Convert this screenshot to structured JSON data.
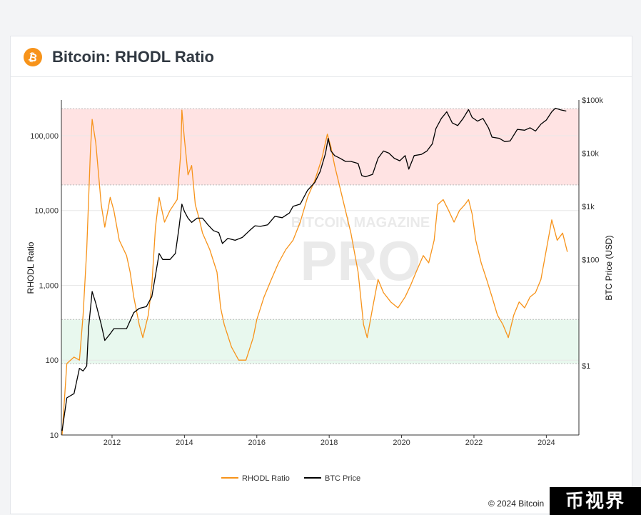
{
  "header": {
    "title": "Bitcoin: RHODL Ratio",
    "logo_icon": "bitcoin-logo-icon"
  },
  "watermark": {
    "line1": "BITCOIN MAGAZINE",
    "line2": "PRO"
  },
  "copyright": "© 2024 Bitcoin",
  "corner_badge": "币视界",
  "colors": {
    "rhodl": "#f7931a",
    "price": "#000000",
    "red_zone": "#ffe3e3",
    "green_zone": "#e8f8ee"
  },
  "chart_data": {
    "type": "line",
    "title": "Bitcoin: RHODL Ratio",
    "xlabel": "",
    "ylabel": "RHODL Ratio",
    "y2label": "BTC Price (USD)",
    "y_scale": "log",
    "y2_scale": "log",
    "ylim": [
      10,
      300000
    ],
    "y2lim": [
      0.05,
      100000
    ],
    "xlim": [
      2010.6,
      2024.9
    ],
    "x_ticks": [
      "2012",
      "2014",
      "2016",
      "2018",
      "2020",
      "2022",
      "2024"
    ],
    "y_ticks": [
      "10",
      "100",
      "1,000",
      "10,000",
      "100,000"
    ],
    "y2_ticks": [
      "$1",
      "$100",
      "$1k",
      "$10k",
      "$100k"
    ],
    "y2_tick_values": [
      1,
      100,
      1000,
      10000,
      100000
    ],
    "bands": [
      {
        "name": "sell-zone",
        "axis": "y",
        "from": 22000,
        "to": 230000
      },
      {
        "name": "buy-zone",
        "axis": "y",
        "from": 90,
        "to": 350
      }
    ],
    "grid": true,
    "legend_position": "bottom",
    "series": [
      {
        "name": "RHODL Ratio",
        "axis": "y",
        "points": [
          [
            2010.62,
            10
          ],
          [
            2010.75,
            90
          ],
          [
            2010.95,
            110
          ],
          [
            2011.1,
            100
          ],
          [
            2011.2,
            400
          ],
          [
            2011.3,
            3000
          ],
          [
            2011.4,
            60000
          ],
          [
            2011.45,
            165000
          ],
          [
            2011.55,
            80000
          ],
          [
            2011.7,
            12000
          ],
          [
            2011.8,
            6000
          ],
          [
            2011.95,
            15000
          ],
          [
            2012.05,
            10000
          ],
          [
            2012.2,
            4000
          ],
          [
            2012.4,
            2500
          ],
          [
            2012.5,
            1500
          ],
          [
            2012.6,
            700
          ],
          [
            2012.75,
            300
          ],
          [
            2012.85,
            200
          ],
          [
            2013.0,
            400
          ],
          [
            2013.1,
            1000
          ],
          [
            2013.2,
            6000
          ],
          [
            2013.3,
            15000
          ],
          [
            2013.45,
            7000
          ],
          [
            2013.6,
            10000
          ],
          [
            2013.8,
            14000
          ],
          [
            2013.9,
            60000
          ],
          [
            2013.93,
            220000
          ],
          [
            2014.0,
            90000
          ],
          [
            2014.1,
            30000
          ],
          [
            2014.2,
            40000
          ],
          [
            2014.3,
            12000
          ],
          [
            2014.4,
            8000
          ],
          [
            2014.5,
            5000
          ],
          [
            2014.7,
            3000
          ],
          [
            2014.9,
            1500
          ],
          [
            2015.0,
            500
          ],
          [
            2015.1,
            300
          ],
          [
            2015.3,
            150
          ],
          [
            2015.5,
            100
          ],
          [
            2015.7,
            100
          ],
          [
            2015.9,
            200
          ],
          [
            2016.0,
            350
          ],
          [
            2016.2,
            700
          ],
          [
            2016.4,
            1200
          ],
          [
            2016.6,
            2000
          ],
          [
            2016.8,
            3000
          ],
          [
            2017.0,
            4000
          ],
          [
            2017.2,
            7000
          ],
          [
            2017.4,
            15000
          ],
          [
            2017.6,
            25000
          ],
          [
            2017.8,
            50000
          ],
          [
            2017.95,
            105000
          ],
          [
            2018.05,
            70000
          ],
          [
            2018.15,
            40000
          ],
          [
            2018.3,
            20000
          ],
          [
            2018.45,
            10000
          ],
          [
            2018.6,
            5000
          ],
          [
            2018.8,
            1500
          ],
          [
            2018.95,
            300
          ],
          [
            2019.05,
            200
          ],
          [
            2019.2,
            500
          ],
          [
            2019.35,
            1200
          ],
          [
            2019.5,
            800
          ],
          [
            2019.7,
            600
          ],
          [
            2019.9,
            500
          ],
          [
            2020.1,
            700
          ],
          [
            2020.25,
            1000
          ],
          [
            2020.4,
            1500
          ],
          [
            2020.6,
            2500
          ],
          [
            2020.75,
            2000
          ],
          [
            2020.9,
            4000
          ],
          [
            2021.0,
            12000
          ],
          [
            2021.15,
            14000
          ],
          [
            2021.3,
            10000
          ],
          [
            2021.45,
            7000
          ],
          [
            2021.6,
            10000
          ],
          [
            2021.75,
            12000
          ],
          [
            2021.85,
            14000
          ],
          [
            2021.95,
            9000
          ],
          [
            2022.05,
            4000
          ],
          [
            2022.2,
            2000
          ],
          [
            2022.35,
            1200
          ],
          [
            2022.5,
            700
          ],
          [
            2022.65,
            400
          ],
          [
            2022.8,
            300
          ],
          [
            2022.95,
            200
          ],
          [
            2023.1,
            400
          ],
          [
            2023.25,
            600
          ],
          [
            2023.4,
            500
          ],
          [
            2023.55,
            700
          ],
          [
            2023.7,
            800
          ],
          [
            2023.85,
            1200
          ],
          [
            2024.0,
            3000
          ],
          [
            2024.15,
            7500
          ],
          [
            2024.3,
            4000
          ],
          [
            2024.45,
            5000
          ],
          [
            2024.58,
            2800
          ]
        ]
      },
      {
        "name": "BTC Price",
        "axis": "y2",
        "points": [
          [
            2010.62,
            0.06
          ],
          [
            2010.75,
            0.25
          ],
          [
            2010.95,
            0.3
          ],
          [
            2011.1,
            0.9
          ],
          [
            2011.2,
            0.8
          ],
          [
            2011.3,
            1.0
          ],
          [
            2011.35,
            5
          ],
          [
            2011.45,
            25
          ],
          [
            2011.55,
            15
          ],
          [
            2011.7,
            6
          ],
          [
            2011.8,
            3
          ],
          [
            2011.95,
            4
          ],
          [
            2012.05,
            5
          ],
          [
            2012.2,
            5
          ],
          [
            2012.4,
            5
          ],
          [
            2012.6,
            10
          ],
          [
            2012.75,
            12
          ],
          [
            2012.95,
            13
          ],
          [
            2013.1,
            20
          ],
          [
            2013.2,
            50
          ],
          [
            2013.3,
            130
          ],
          [
            2013.4,
            100
          ],
          [
            2013.5,
            100
          ],
          [
            2013.6,
            100
          ],
          [
            2013.75,
            130
          ],
          [
            2013.85,
            400
          ],
          [
            2013.93,
            1100
          ],
          [
            2014.0,
            800
          ],
          [
            2014.1,
            600
          ],
          [
            2014.2,
            500
          ],
          [
            2014.35,
            600
          ],
          [
            2014.5,
            600
          ],
          [
            2014.65,
            450
          ],
          [
            2014.8,
            350
          ],
          [
            2014.95,
            320
          ],
          [
            2015.05,
            200
          ],
          [
            2015.2,
            250
          ],
          [
            2015.4,
            230
          ],
          [
            2015.6,
            260
          ],
          [
            2015.8,
            350
          ],
          [
            2015.95,
            430
          ],
          [
            2016.1,
            420
          ],
          [
            2016.3,
            450
          ],
          [
            2016.5,
            650
          ],
          [
            2016.7,
            610
          ],
          [
            2016.9,
            750
          ],
          [
            2017.0,
            1000
          ],
          [
            2017.2,
            1100
          ],
          [
            2017.4,
            2000
          ],
          [
            2017.6,
            2800
          ],
          [
            2017.75,
            4500
          ],
          [
            2017.9,
            10000
          ],
          [
            2017.97,
            19000
          ],
          [
            2018.05,
            11000
          ],
          [
            2018.15,
            9000
          ],
          [
            2018.3,
            8000
          ],
          [
            2018.45,
            7000
          ],
          [
            2018.6,
            7000
          ],
          [
            2018.8,
            6400
          ],
          [
            2018.9,
            3800
          ],
          [
            2019.0,
            3600
          ],
          [
            2019.2,
            4000
          ],
          [
            2019.35,
            8000
          ],
          [
            2019.5,
            11000
          ],
          [
            2019.65,
            10000
          ],
          [
            2019.8,
            8000
          ],
          [
            2019.95,
            7200
          ],
          [
            2020.1,
            9000
          ],
          [
            2020.2,
            5000
          ],
          [
            2020.35,
            9000
          ],
          [
            2020.55,
            9500
          ],
          [
            2020.7,
            11000
          ],
          [
            2020.85,
            15000
          ],
          [
            2020.95,
            29000
          ],
          [
            2021.1,
            45000
          ],
          [
            2021.25,
            60000
          ],
          [
            2021.4,
            37000
          ],
          [
            2021.55,
            33000
          ],
          [
            2021.7,
            45000
          ],
          [
            2021.85,
            66000
          ],
          [
            2021.95,
            47000
          ],
          [
            2022.1,
            40000
          ],
          [
            2022.25,
            45000
          ],
          [
            2022.4,
            30000
          ],
          [
            2022.5,
            20000
          ],
          [
            2022.7,
            19000
          ],
          [
            2022.85,
            16500
          ],
          [
            2023.0,
            17000
          ],
          [
            2023.2,
            28000
          ],
          [
            2023.4,
            27000
          ],
          [
            2023.55,
            30000
          ],
          [
            2023.7,
            26000
          ],
          [
            2023.85,
            35000
          ],
          [
            2024.0,
            42000
          ],
          [
            2024.15,
            60000
          ],
          [
            2024.25,
            70000
          ],
          [
            2024.4,
            65000
          ],
          [
            2024.55,
            62000
          ]
        ]
      }
    ]
  }
}
